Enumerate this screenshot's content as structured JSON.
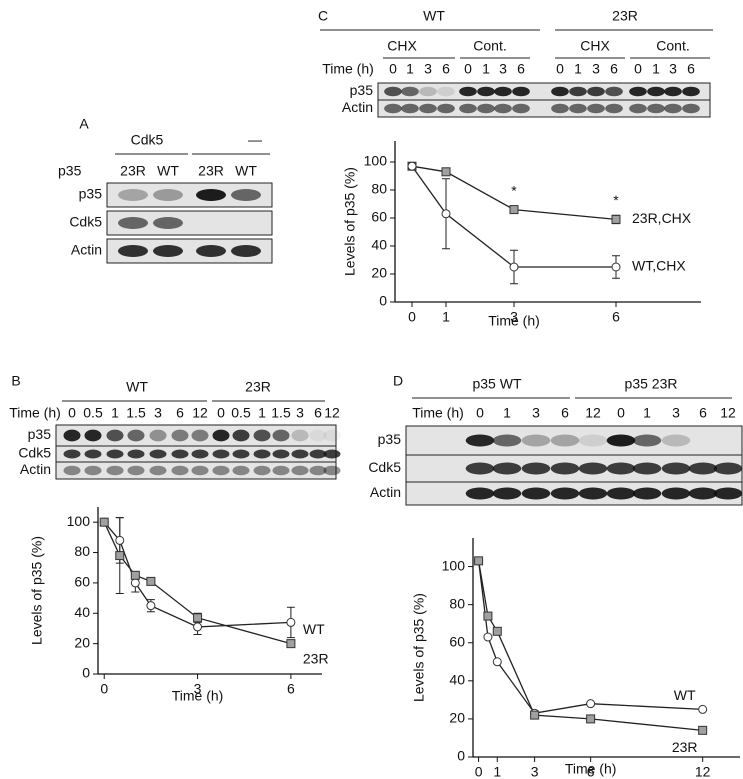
{
  "figure_labels": {
    "a": "A",
    "b": "B",
    "c": "C",
    "d": "D"
  },
  "panel_a": {
    "groups": [
      "Cdk5",
      "—"
    ],
    "lane_label": "p35",
    "lanes": [
      "23R",
      "WT",
      "23R",
      "WT"
    ],
    "rows": [
      "p35",
      "Cdk5",
      "Actin"
    ]
  },
  "panel_b": {
    "groups": [
      "WT",
      "23R"
    ],
    "time_label": "Time (h)",
    "lanes": [
      "0",
      "0.5",
      "1",
      "1.5",
      "3",
      "6",
      "12",
      "0",
      "0.5",
      "1",
      "1.5",
      "3",
      "6",
      "12"
    ],
    "rows": [
      "p35",
      "Cdk5",
      "Actin"
    ]
  },
  "panel_c": {
    "groups": [
      "WT",
      "23R"
    ],
    "treatments": [
      "CHX",
      "Cont.",
      "CHX",
      "Cont."
    ],
    "time_label": "Time (h)",
    "lanes": [
      "0",
      "1",
      "3",
      "6",
      "0",
      "1",
      "3",
      "6",
      "0",
      "1",
      "3",
      "6",
      "0",
      "1",
      "3",
      "6"
    ],
    "rows": [
      "p35",
      "Actin"
    ]
  },
  "panel_d": {
    "groups": [
      "p35 WT",
      "p35 23R"
    ],
    "time_label": "Time (h)",
    "lanes": [
      "0",
      "1",
      "3",
      "6",
      "12",
      "0",
      "1",
      "3",
      "6",
      "12"
    ],
    "rows": [
      "p35",
      "Cdk5",
      "Actin"
    ]
  },
  "chart_data": [
    {
      "type": "line",
      "y_label": "Levels of p35 (%)",
      "x_label": "Time (h)",
      "x": [
        0,
        1,
        3,
        6
      ],
      "xlim": [
        -0.5,
        8.5
      ],
      "ylim": [
        0,
        115
      ],
      "xticks": [
        0,
        1,
        3,
        6
      ],
      "yticks": [
        0,
        20,
        40,
        60,
        80,
        100
      ],
      "series": [
        {
          "name": "23R,CHX",
          "color": "#a0a0a0",
          "marker": "square",
          "values": [
            97,
            93,
            66,
            59
          ],
          "errors": [
            null,
            2,
            2,
            3
          ]
        },
        {
          "name": "WT,CHX",
          "color": "#ffffff",
          "marker": "circle",
          "values": [
            97,
            63,
            25,
            25
          ],
          "errors": [
            null,
            25,
            12,
            8
          ]
        }
      ],
      "annotations": [
        "*",
        "*"
      ]
    },
    {
      "type": "line",
      "y_label": "Levels of p35 (%)",
      "x_label": "Time (h)",
      "x": [
        0,
        0.5,
        1,
        1.5,
        3,
        6
      ],
      "xlim": [
        -0.2,
        7
      ],
      "ylim": [
        0,
        110
      ],
      "xticks": [
        0,
        3,
        6
      ],
      "yticks": [
        0,
        20,
        40,
        60,
        80,
        100
      ],
      "series": [
        {
          "name": "WT",
          "color": "#ffffff",
          "marker": "circle",
          "values": [
            100,
            88,
            60,
            45,
            31,
            34
          ],
          "errors": [
            null,
            15,
            6,
            4,
            5,
            10
          ]
        },
        {
          "name": "23R",
          "color": "#a0a0a0",
          "marker": "square",
          "values": [
            100,
            78,
            65,
            61,
            37,
            20
          ],
          "errors": [
            null,
            25,
            2,
            2,
            3,
            2
          ]
        }
      ]
    },
    {
      "type": "line",
      "y_label": "Levels of p35 (%)",
      "x_label": "Time (h)",
      "x": [
        0,
        0.5,
        1,
        3,
        6,
        12
      ],
      "xlim": [
        -0.3,
        14
      ],
      "ylim": [
        0,
        115
      ],
      "xticks": [
        0,
        1,
        3,
        6,
        12
      ],
      "yticks": [
        0,
        20,
        40,
        60,
        80,
        100
      ],
      "series": [
        {
          "name": "WT",
          "color": "#ffffff",
          "marker": "circle",
          "values": [
            103,
            63,
            50,
            23,
            28,
            25
          ]
        },
        {
          "name": "23R",
          "color": "#a0a0a0",
          "marker": "square",
          "values": [
            103,
            74,
            66,
            22,
            20,
            14
          ]
        }
      ]
    }
  ]
}
